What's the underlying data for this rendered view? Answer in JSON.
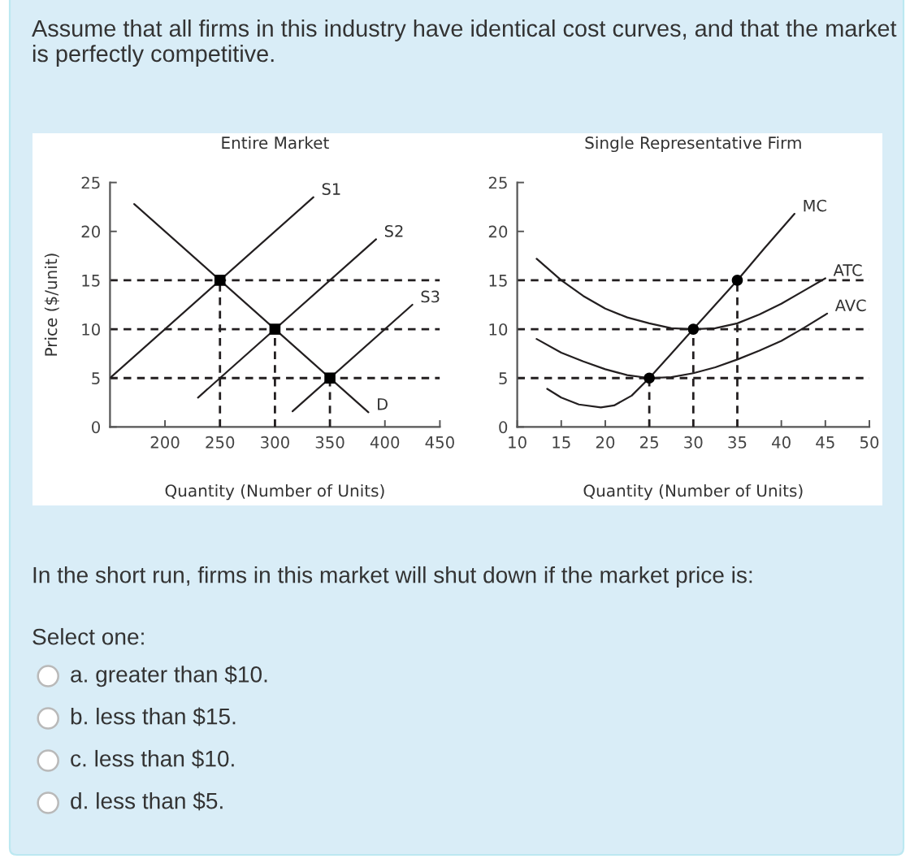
{
  "chart_data": [
    {
      "type": "other",
      "annotations": [
        "Assume that all firms in this industry have identical cost curves, and that the market is perfectly competitive."
      ]
    },
    {
      "type": "line",
      "title": "Entire Market",
      "xlabel": "Quantity (Number of Units)",
      "ylabel": "Price ($/unit)",
      "xlim": [
        150,
        450
      ],
      "ylim": [
        0,
        25
      ],
      "xticks": [
        200,
        250,
        300,
        350,
        400,
        450
      ],
      "yticks": [
        0,
        5,
        10,
        15,
        20,
        25
      ],
      "ref_lines": [
        {
          "axis": "y",
          "value": 15,
          "color": "#231f20",
          "line_style": "dashed"
        },
        {
          "axis": "y",
          "value": 10,
          "color": "#231f20",
          "line_style": "dashed"
        },
        {
          "axis": "y",
          "value": 5,
          "color": "#231f20",
          "line_style": "dashed"
        }
      ],
      "series": [
        {
          "name": "S1",
          "color": "#231f20",
          "x": [
            150,
            335
          ],
          "values": [
            5,
            23.5
          ]
        },
        {
          "name": "S2",
          "color": "#231f20",
          "x": [
            230,
            392
          ],
          "values": [
            3,
            19.2
          ]
        },
        {
          "name": "S3",
          "color": "#231f20",
          "x": [
            316,
            425
          ],
          "values": [
            1.6,
            12.5
          ]
        },
        {
          "name": "D",
          "color": "#231f20",
          "x": [
            172,
            385
          ],
          "values": [
            22.8,
            1.5
          ]
        },
        {
          "color": "#231f20",
          "line_style": "dashed",
          "x": [
            250,
            250
          ],
          "values": [
            0,
            15
          ]
        },
        {
          "color": "#231f20",
          "line_style": "dashed",
          "x": [
            300,
            300
          ],
          "values": [
            0,
            10
          ]
        },
        {
          "color": "#231f20",
          "line_style": "dashed",
          "x": [
            350,
            350
          ],
          "values": [
            0,
            5
          ]
        },
        {
          "type": "scatter",
          "marker": "square",
          "color": "#000000",
          "x": [
            250,
            300,
            350
          ],
          "values": [
            15,
            10,
            5
          ]
        }
      ]
    },
    {
      "type": "line",
      "title": "Single Representative Firm",
      "xlabel": "Quantity (Number of Units)",
      "xlim": [
        10,
        50
      ],
      "ylim": [
        0,
        25
      ],
      "xticks": [
        10,
        15,
        20,
        25,
        30,
        35,
        40,
        45,
        50
      ],
      "yticks": [
        0,
        5,
        10,
        15,
        20,
        25
      ],
      "ref_lines": [
        {
          "axis": "y",
          "value": 15,
          "color": "#231f20",
          "line_style": "dashed"
        },
        {
          "axis": "y",
          "value": 10,
          "color": "#231f20",
          "line_style": "dashed"
        },
        {
          "axis": "y",
          "value": 5,
          "color": "#231f20",
          "line_style": "dashed"
        }
      ],
      "series": [
        {
          "name": "MC",
          "color": "#231f20",
          "x": [
            13.4,
            15,
            17,
            19.5,
            21,
            23,
            25,
            27.5,
            30,
            32.5,
            35,
            38,
            41.5
          ],
          "values": [
            3.9,
            3.0,
            2.3,
            2.0,
            2.2,
            3.2,
            5,
            7.5,
            10,
            12.5,
            15,
            18.2,
            21.8
          ]
        },
        {
          "name": "ATC",
          "color": "#231f20",
          "x": [
            12.2,
            15,
            17.5,
            20,
            22.5,
            25,
            27.5,
            30,
            32.5,
            35,
            37.5,
            40,
            42.5,
            45
          ],
          "values": [
            17.2,
            15,
            13.4,
            12.1,
            11.2,
            10.6,
            10.1,
            10,
            10.1,
            10.6,
            11.5,
            12.6,
            13.9,
            15.2
          ]
        },
        {
          "name": "AVC",
          "color": "#231f20",
          "x": [
            12.2,
            15,
            17.5,
            20,
            22.5,
            25,
            27.5,
            30,
            32.5,
            35,
            37.5,
            40,
            42.5,
            45.2
          ],
          "values": [
            9,
            7.6,
            6.7,
            5.9,
            5.3,
            5,
            5.1,
            5.5,
            6.1,
            6.9,
            7.8,
            8.8,
            10.1,
            11.6
          ]
        },
        {
          "color": "#231f20",
          "line_style": "dashed",
          "x": [
            25,
            25
          ],
          "values": [
            0,
            5
          ]
        },
        {
          "color": "#231f20",
          "line_style": "dashed",
          "x": [
            30,
            30
          ],
          "values": [
            0,
            10
          ]
        },
        {
          "color": "#231f20",
          "line_style": "dashed",
          "x": [
            35,
            35
          ],
          "values": [
            0,
            15
          ]
        },
        {
          "type": "scatter",
          "marker": "circle",
          "color": "#000000",
          "x": [
            25,
            30,
            35
          ],
          "values": [
            5,
            10,
            15
          ]
        }
      ]
    },
    {
      "type": "other",
      "annotations": [
        "In the short run, firms in this market will shut down if the market price is:",
        "Select one:",
        "a. greater than $10.",
        "b. less than $15.",
        "c. less than $10.",
        "d. less than $5."
      ]
    }
  ]
}
